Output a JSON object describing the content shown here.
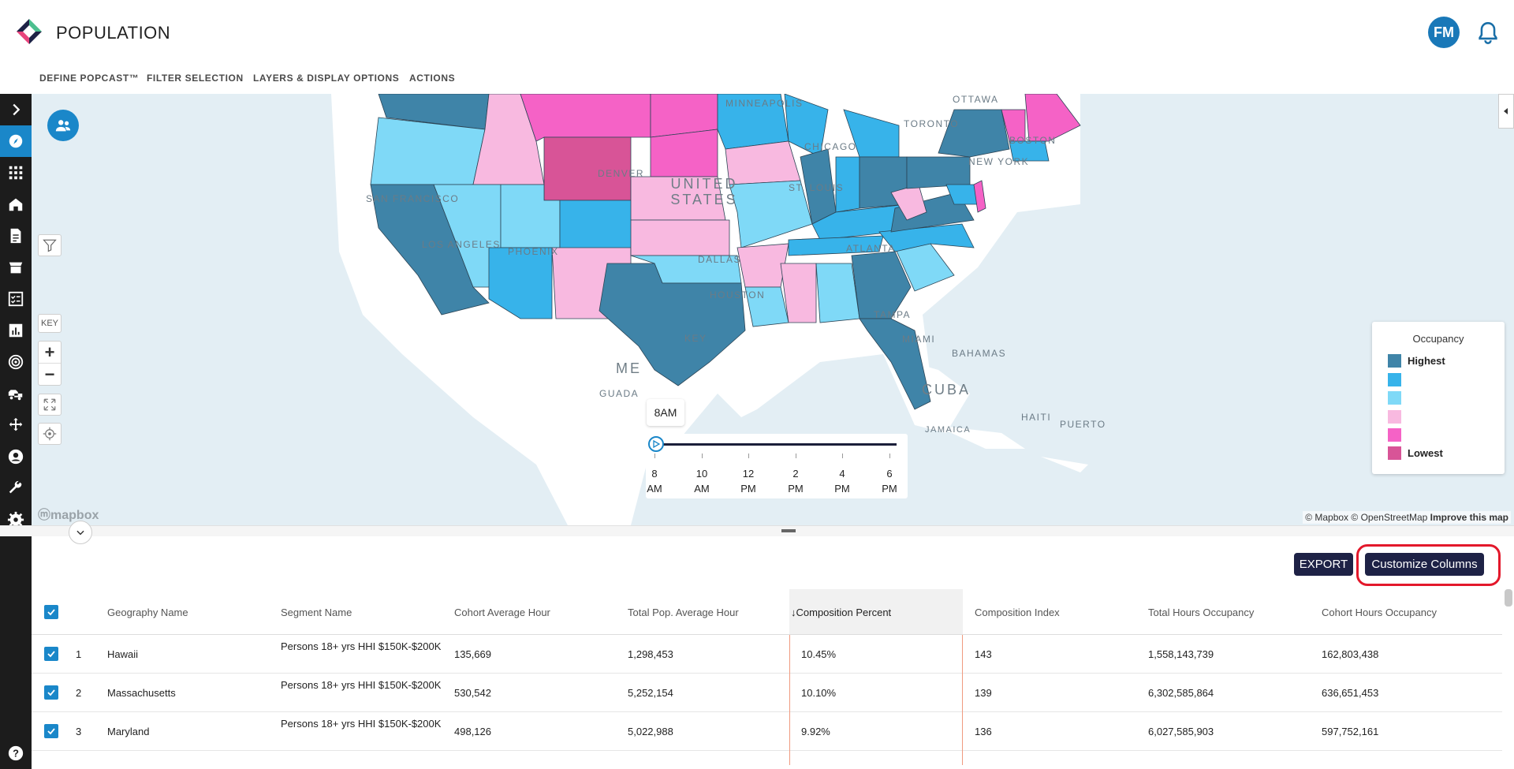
{
  "app": {
    "title": "POPULATION",
    "user_initials": "FM"
  },
  "nav": [
    "DEFINE POPCAST™",
    "FILTER SELECTION",
    "LAYERS & DISPLAY OPTIONS",
    "ACTIONS"
  ],
  "sidebar_icons": [
    "chevron-right-icon",
    "compass-icon",
    "grid-icon",
    "home-icon",
    "report-icon",
    "store-icon",
    "checklist-icon",
    "bar-chart-icon",
    "target-icon",
    "vehicles-icon",
    "move-icon",
    "user-icon",
    "wrench-icon",
    "settings-icon",
    "help-icon"
  ],
  "map": {
    "controls": {
      "key_label": "KEY",
      "zoom_in": "+",
      "zoom_out": "−"
    },
    "labels": {
      "ottawa": "OTTAWA",
      "toronto": "TORONTO",
      "minneapolis": "MINNEAPOLIS",
      "chicago": "CHICAGO",
      "boston": "BOSTON",
      "new_york": "NEW YORK",
      "denver": "DENVER",
      "united_states": "UNITED STATES",
      "st_louis": "ST. LOUIS",
      "san_francisco": "SAN FRANCISCO",
      "los_angeles": "LOS ANGELES",
      "phoenix": "PHOENIX",
      "dallas": "DALLAS",
      "atlanta": "ATLANTA",
      "houston": "HOUSTON",
      "tampa": "TAMPA",
      "miami": "MIAMI",
      "bahamas": "BAHAMAS",
      "mexico_partial": "ME",
      "guada_partial": "GUADA",
      "cuba_partial": "CUBA",
      "haiti": "HAITI",
      "puerto": "PUERTO",
      "jamaica_partial": "JAMAICA",
      "key_partial": "KEY"
    },
    "mapbox_logo": "mapbox",
    "attribution": {
      "mapbox": "© Mapbox",
      "osm": "© OpenStreetMap",
      "improve": "Improve this map"
    }
  },
  "legend": {
    "title": "Occupancy",
    "items": [
      {
        "label": "Highest",
        "color": "#3f84a8"
      },
      {
        "label": "",
        "color": "#37b3ea"
      },
      {
        "label": "",
        "color": "#7fd9f7"
      },
      {
        "label": "",
        "color": "#f8b9e0"
      },
      {
        "label": "",
        "color": "#f562c6"
      },
      {
        "label": "Lowest",
        "color": "#d85497"
      }
    ]
  },
  "time_slider": {
    "current": "8AM",
    "ticks": [
      {
        "line1": "8",
        "line2": "AM"
      },
      {
        "line1": "10",
        "line2": "AM"
      },
      {
        "line1": "12",
        "line2": "PM"
      },
      {
        "line1": "2",
        "line2": "PM"
      },
      {
        "line1": "4",
        "line2": "PM"
      },
      {
        "line1": "6",
        "line2": "PM"
      }
    ]
  },
  "actions": {
    "export": "EXPORT",
    "customize": "Customize Columns"
  },
  "table": {
    "columns": [
      "Geography Name",
      "Segment Name",
      "Cohort Average Hour",
      "Total Pop. Average Hour",
      "Composition Percent",
      "Composition Index",
      "Total Hours Occupancy",
      "Cohort Hours Occupancy"
    ],
    "sort_arrow": "↓",
    "rows": [
      {
        "num": "1",
        "geo": "Hawaii",
        "seg": "Persons 18+ yrs HHI $150K-$200K",
        "cah": "135,669",
        "tpah": "1,298,453",
        "cp": "10.45%",
        "ci": "143",
        "tho": "1,558,143,739",
        "cho": "162,803,438"
      },
      {
        "num": "2",
        "geo": "Massachusetts",
        "seg": "Persons 18+ yrs HHI $150K-$200K",
        "cah": "530,542",
        "tpah": "5,252,154",
        "cp": "10.10%",
        "ci": "139",
        "tho": "6,302,585,864",
        "cho": "636,651,453"
      },
      {
        "num": "3",
        "geo": "Maryland",
        "seg": "Persons 18+ yrs HHI $150K-$200K",
        "cah": "498,126",
        "tpah": "5,022,988",
        "cp": "9.92%",
        "ci": "136",
        "tho": "6,027,585,903",
        "cho": "597,752,161"
      }
    ]
  }
}
